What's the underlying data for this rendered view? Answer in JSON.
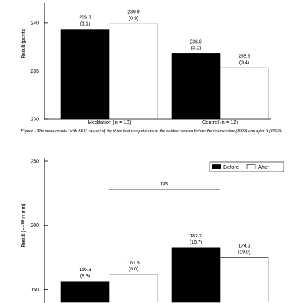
{
  "chart_data": [
    {
      "type": "bar",
      "categories": [
        "Meditation (n = 13)",
        "Control (n = 12)"
      ],
      "series": [
        {
          "values": [
            239.3,
            236.8
          ],
          "sem_labels": [
            "(1.1)",
            "(3.0)"
          ]
        },
        {
          "values": [
            239.9,
            235.3
          ],
          "sem_labels": [
            "(0.9)",
            "(3.4)"
          ]
        }
      ],
      "value_labels": [
        "239.3",
        "239.9",
        "236.8",
        "235.3"
      ],
      "ylabel": "Result (points)",
      "yticks": [
        "230",
        "235",
        "240"
      ],
      "ylim": [
        230,
        241.5
      ],
      "series_colors": [
        "#000000",
        "#ffffff"
      ]
    },
    {
      "type": "bar",
      "categories": [
        "",
        ""
      ],
      "series": [
        {
          "name": "Before",
          "values": [
            156.3,
            182.7
          ],
          "sem_labels": [
            "(8.3)",
            "(16.7)"
          ]
        },
        {
          "name": "After",
          "values": [
            161.5,
            174.9
          ],
          "sem_labels": [
            "(6.0)",
            "(19.0)"
          ]
        }
      ],
      "value_labels": [
        "156.3",
        "161.5",
        "182.7",
        "174.9"
      ],
      "ylabel": "Result (H+W in mm)",
      "yticks": [
        "150",
        "200",
        "250"
      ],
      "ylim": [
        140,
        250
      ],
      "annotation": "NS",
      "legend_position": "top-right",
      "series_colors": [
        "#000000",
        "#ffffff"
      ]
    }
  ],
  "caption": "Figure 1   The mean results (with SEM values) of the three best competitions in the outdoor season before the intervention (1992) and after it (1993)."
}
